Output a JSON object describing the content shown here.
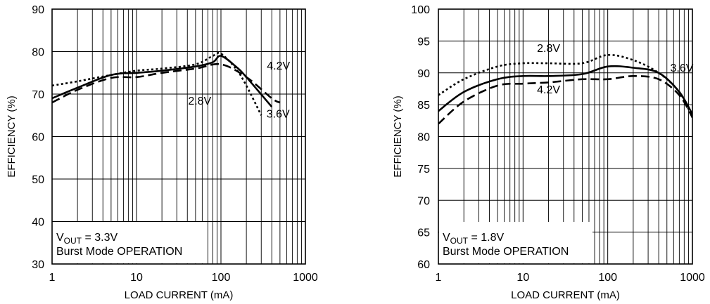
{
  "chart_data": [
    {
      "type": "line",
      "title": "",
      "xlabel": "LOAD CURRENT (mA)",
      "ylabel": "EFFICIENCY (%)",
      "x_scale": "log",
      "xlim": [
        1,
        1000
      ],
      "ylim": [
        30,
        90
      ],
      "x_ticks": [
        "1",
        "10",
        "100",
        "1000"
      ],
      "y_ticks": [
        "30",
        "40",
        "50",
        "60",
        "70",
        "80",
        "90"
      ],
      "grid": true,
      "annotation": {
        "main_prefix": "V",
        "sub": "OUT",
        "suffix": " = 3.3V",
        "line2": "Burst Mode OPERATION"
      },
      "series": [
        {
          "name": "2.8V",
          "dash": "dotted",
          "points": [
            [
              1,
              72
            ],
            [
              2,
              73
            ],
            [
              5,
              74.5
            ],
            [
              10,
              75.5
            ],
            [
              20,
              76
            ],
            [
              50,
              77
            ],
            [
              80,
              79
            ],
            [
              100,
              79.5
            ],
            [
              150,
              76
            ],
            [
              200,
              72
            ],
            [
              300,
              65
            ]
          ]
        },
        {
          "name": "3.6V",
          "dash": "solid",
          "points": [
            [
              1,
              69
            ],
            [
              2,
              71.5
            ],
            [
              5,
              74.5
            ],
            [
              10,
              75
            ],
            [
              20,
              75.5
            ],
            [
              50,
              76.5
            ],
            [
              80,
              77.5
            ],
            [
              100,
              79
            ],
            [
              150,
              76.5
            ],
            [
              200,
              74
            ],
            [
              400,
              67
            ]
          ]
        },
        {
          "name": "4.2V",
          "dash": "dashed",
          "points": [
            [
              1,
              68
            ],
            [
              2,
              71
            ],
            [
              5,
              73.8
            ],
            [
              10,
              74
            ],
            [
              20,
              75
            ],
            [
              50,
              76
            ],
            [
              100,
              77
            ],
            [
              200,
              74
            ],
            [
              400,
              69
            ],
            [
              500,
              68
            ]
          ]
        }
      ],
      "labels": [
        {
          "text": "4.2V",
          "x": 480,
          "y": 75.8
        },
        {
          "text": "2.8V",
          "x": 56,
          "y": 67.5
        },
        {
          "text": "3.6V",
          "x": 475,
          "y": 64.5
        }
      ]
    },
    {
      "type": "line",
      "title": "",
      "xlabel": "LOAD CURRENT (mA)",
      "ylabel": "EFFICIENCY (%)",
      "x_scale": "log",
      "xlim": [
        1,
        1000
      ],
      "ylim": [
        60,
        100
      ],
      "x_ticks": [
        "1",
        "10",
        "100",
        "1000"
      ],
      "y_ticks": [
        "60",
        "65",
        "70",
        "75",
        "80",
        "85",
        "90",
        "95",
        "100"
      ],
      "grid": true,
      "annotation": {
        "main_prefix": "V",
        "sub": "OUT",
        "suffix": " = 1.8V",
        "line2": "Burst Mode OPERATION"
      },
      "series": [
        {
          "name": "2.8V",
          "dash": "dotted",
          "points": [
            [
              1,
              86.5
            ],
            [
              2,
              89
            ],
            [
              5,
              91
            ],
            [
              10,
              91.5
            ],
            [
              20,
              91.5
            ],
            [
              50,
              91.5
            ],
            [
              100,
              92.8
            ],
            [
              200,
              92
            ],
            [
              400,
              90
            ],
            [
              700,
              87
            ],
            [
              1000,
              83
            ]
          ]
        },
        {
          "name": "3.6V",
          "dash": "solid",
          "points": [
            [
              1,
              84
            ],
            [
              2,
              87
            ],
            [
              5,
              89
            ],
            [
              10,
              89.5
            ],
            [
              20,
              89.5
            ],
            [
              50,
              89.8
            ],
            [
              100,
              91
            ],
            [
              200,
              90.8
            ],
            [
              400,
              90
            ],
            [
              700,
              87
            ],
            [
              1000,
              83.5
            ]
          ]
        },
        {
          "name": "4.2V",
          "dash": "dashed",
          "points": [
            [
              1,
              82
            ],
            [
              2,
              85.5
            ],
            [
              5,
              88
            ],
            [
              10,
              88.3
            ],
            [
              20,
              88.5
            ],
            [
              50,
              89
            ],
            [
              100,
              89
            ],
            [
              200,
              89.5
            ],
            [
              400,
              89
            ],
            [
              700,
              86.5
            ],
            [
              1000,
              83
            ]
          ]
        }
      ],
      "labels": [
        {
          "text": "2.8V",
          "x": 20,
          "y": 93.3
        },
        {
          "text": "4.2V",
          "x": 20,
          "y": 86.8
        },
        {
          "text": "3.6V",
          "x": 750,
          "y": 90.2
        }
      ]
    }
  ]
}
